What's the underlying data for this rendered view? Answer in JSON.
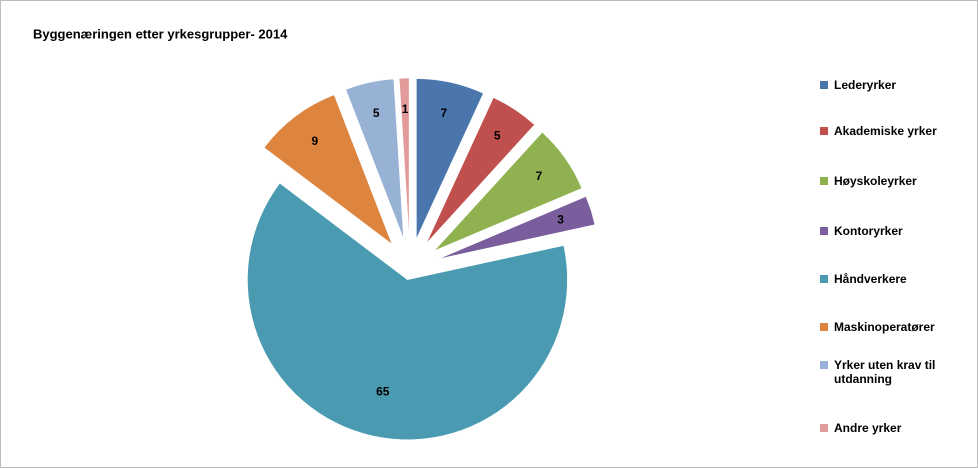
{
  "chart_data": {
    "type": "pie",
    "title": "Byggenæringen etter yrkesgrupper- 2014",
    "categories": [
      "Lederyrker",
      "Akademiske yrker",
      "Høyskoleyrker",
      "Kontoryrker",
      "Håndverkere",
      "Maskinoperatører",
      "Yrker uten krav til utdanning",
      "Andre yrker"
    ],
    "values": [
      7,
      5,
      7,
      3,
      65,
      9,
      5,
      1
    ],
    "colors": [
      "#4a76ad",
      "#c0504d",
      "#8fb150",
      "#7a5d9c",
      "#4a9bb2",
      "#dd843f",
      "#98b2d6",
      "#e39a9a"
    ],
    "legend": "right"
  }
}
